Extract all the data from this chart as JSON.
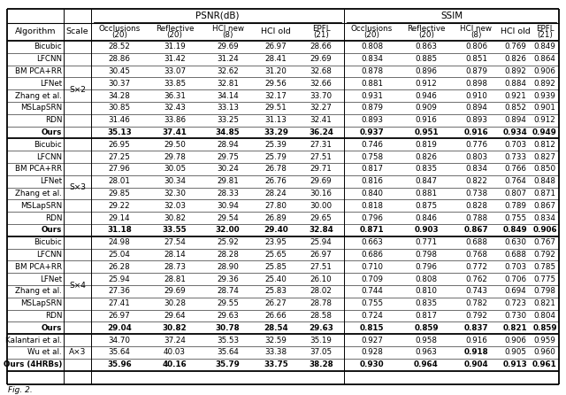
{
  "title_psnr": "PSNR(dB)",
  "title_ssim": "SSIM",
  "groups": [
    {
      "scale": "S×2",
      "rows": [
        {
          "algo": "Bicubic",
          "bold": false,
          "psnr": [
            "28.52",
            "31.19",
            "29.69",
            "26.97",
            "28.66"
          ],
          "ssim": [
            "0.808",
            "0.863",
            "0.806",
            "0.769",
            "0.849"
          ]
        },
        {
          "algo": "LFCNN",
          "bold": false,
          "psnr": [
            "28.86",
            "31.42",
            "31.24",
            "28.41",
            "29.69"
          ],
          "ssim": [
            "0.834",
            "0.885",
            "0.851",
            "0.826",
            "0.864"
          ]
        },
        {
          "algo": "BM PCA+RR",
          "bold": false,
          "psnr": [
            "30.45",
            "33.07",
            "32.62",
            "31.20",
            "32.68"
          ],
          "ssim": [
            "0.878",
            "0.896",
            "0.879",
            "0.892",
            "0.906"
          ]
        },
        {
          "algo": "LFNet",
          "bold": false,
          "psnr": [
            "30.37",
            "33.85",
            "32.81",
            "29.56",
            "32.66"
          ],
          "ssim": [
            "0.881",
            "0.912",
            "0.898",
            "0.884",
            "0.892"
          ]
        },
        {
          "algo": "Zhang et al.",
          "bold": false,
          "psnr": [
            "34.28",
            "36.31",
            "34.14",
            "32.17",
            "33.70"
          ],
          "ssim": [
            "0.931",
            "0.946",
            "0.910",
            "0.921",
            "0.939"
          ]
        },
        {
          "algo": "MSLapSRN",
          "bold": false,
          "psnr": [
            "30.85",
            "32.43",
            "33.13",
            "29.51",
            "32.27"
          ],
          "ssim": [
            "0.879",
            "0.909",
            "0.894",
            "0.852",
            "0.901"
          ]
        },
        {
          "algo": "RDN",
          "bold": false,
          "psnr": [
            "31.46",
            "33.86",
            "33.25",
            "31.13",
            "32.41"
          ],
          "ssim": [
            "0.893",
            "0.916",
            "0.893",
            "0.894",
            "0.912"
          ]
        },
        {
          "algo": "Ours",
          "bold": true,
          "psnr": [
            "35.13",
            "37.41",
            "34.85",
            "33.29",
            "36.24"
          ],
          "ssim": [
            "0.937",
            "0.951",
            "0.916",
            "0.934",
            "0.949"
          ]
        }
      ]
    },
    {
      "scale": "S×3",
      "rows": [
        {
          "algo": "Bicubic",
          "bold": false,
          "psnr": [
            "26.95",
            "29.50",
            "28.94",
            "25.39",
            "27.31"
          ],
          "ssim": [
            "0.746",
            "0.819",
            "0.776",
            "0.703",
            "0.812"
          ]
        },
        {
          "algo": "LFCNN",
          "bold": false,
          "psnr": [
            "27.25",
            "29.78",
            "29.75",
            "25.79",
            "27.51"
          ],
          "ssim": [
            "0.758",
            "0.826",
            "0.803",
            "0.733",
            "0.827"
          ]
        },
        {
          "algo": "BM PCA+RR",
          "bold": false,
          "psnr": [
            "27.96",
            "30.05",
            "30.24",
            "26.78",
            "29.71"
          ],
          "ssim": [
            "0.817",
            "0.835",
            "0.834",
            "0.766",
            "0.850"
          ]
        },
        {
          "algo": "LFNet",
          "bold": false,
          "psnr": [
            "28.01",
            "30.34",
            "29.81",
            "26.76",
            "29.69"
          ],
          "ssim": [
            "0.816",
            "0.847",
            "0.822",
            "0.764",
            "0.848"
          ]
        },
        {
          "algo": "Zhang et al.",
          "bold": false,
          "psnr": [
            "29.85",
            "32.30",
            "28.33",
            "28.24",
            "30.16"
          ],
          "ssim": [
            "0.840",
            "0.881",
            "0.738",
            "0.807",
            "0.871"
          ]
        },
        {
          "algo": "MSLapSRN",
          "bold": false,
          "psnr": [
            "29.22",
            "32.03",
            "30.94",
            "27.80",
            "30.00"
          ],
          "ssim": [
            "0.818",
            "0.875",
            "0.828",
            "0.789",
            "0.867"
          ]
        },
        {
          "algo": "RDN",
          "bold": false,
          "psnr": [
            "29.14",
            "30.82",
            "29.54",
            "26.89",
            "29.65"
          ],
          "ssim": [
            "0.796",
            "0.846",
            "0.788",
            "0.755",
            "0.834"
          ]
        },
        {
          "algo": "Ours",
          "bold": true,
          "psnr": [
            "31.18",
            "33.55",
            "32.00",
            "29.40",
            "32.84"
          ],
          "ssim": [
            "0.871",
            "0.903",
            "0.867",
            "0.849",
            "0.906"
          ]
        }
      ]
    },
    {
      "scale": "S×4",
      "rows": [
        {
          "algo": "Bicubic",
          "bold": false,
          "psnr": [
            "24.98",
            "27.54",
            "25.92",
            "23.95",
            "25.94"
          ],
          "ssim": [
            "0.663",
            "0.771",
            "0.688",
            "0.630",
            "0.767"
          ]
        },
        {
          "algo": "LFCNN",
          "bold": false,
          "psnr": [
            "25.04",
            "28.14",
            "28.28",
            "25.65",
            "26.97"
          ],
          "ssim": [
            "0.686",
            "0.798",
            "0.768",
            "0.688",
            "0.792"
          ]
        },
        {
          "algo": "BM PCA+RR",
          "bold": false,
          "psnr": [
            "26.28",
            "28.73",
            "28.90",
            "25.85",
            "27.51"
          ],
          "ssim": [
            "0.710",
            "0.796",
            "0.772",
            "0.703",
            "0.785"
          ]
        },
        {
          "algo": "LFNet",
          "bold": false,
          "psnr": [
            "25.94",
            "28.81",
            "29.36",
            "25.40",
            "26.10"
          ],
          "ssim": [
            "0.709",
            "0.808",
            "0.762",
            "0.706",
            "0.775"
          ]
        },
        {
          "algo": "Zhang et al.",
          "bold": false,
          "psnr": [
            "27.36",
            "29.69",
            "28.74",
            "25.83",
            "28.02"
          ],
          "ssim": [
            "0.744",
            "0.810",
            "0.743",
            "0.694",
            "0.798"
          ]
        },
        {
          "algo": "MSLapSRN",
          "bold": false,
          "psnr": [
            "27.41",
            "30.28",
            "29.55",
            "26.27",
            "28.78"
          ],
          "ssim": [
            "0.755",
            "0.835",
            "0.782",
            "0.723",
            "0.821"
          ]
        },
        {
          "algo": "RDN",
          "bold": false,
          "psnr": [
            "26.97",
            "29.64",
            "29.63",
            "26.66",
            "28.58"
          ],
          "ssim": [
            "0.724",
            "0.817",
            "0.792",
            "0.730",
            "0.804"
          ]
        },
        {
          "algo": "Ours",
          "bold": true,
          "psnr": [
            "29.04",
            "30.82",
            "30.78",
            "28.54",
            "29.63"
          ],
          "ssim": [
            "0.815",
            "0.859",
            "0.837",
            "0.821",
            "0.859"
          ]
        }
      ]
    },
    {
      "scale": "A×3",
      "rows": [
        {
          "algo": "Kalantari et al.",
          "bold": false,
          "psnr": [
            "34.70",
            "37.24",
            "35.53",
            "32.59",
            "35.19"
          ],
          "ssim": [
            "0.927",
            "0.958",
            "0.916",
            "0.906",
            "0.959"
          ]
        },
        {
          "algo": "Wu et al.",
          "bold": false,
          "psnr": [
            "35.64",
            "40.03",
            "35.64",
            "33.38",
            "37.05"
          ],
          "ssim": [
            "0.928",
            "0.963",
            "0.918",
            "0.905",
            "0.960"
          ]
        },
        {
          "algo": "Ours (4HRBs)",
          "bold": true,
          "psnr": [
            "35.96",
            "40.16",
            "35.79",
            "33.75",
            "38.28"
          ],
          "ssim": [
            "0.930",
            "0.964",
            "0.904",
            "0.913",
            "0.961"
          ]
        }
      ]
    }
  ],
  "wu_bold_ssim_idx": 2,
  "fig_label": "Fig. 2.",
  "bg_color": "#ffffff"
}
